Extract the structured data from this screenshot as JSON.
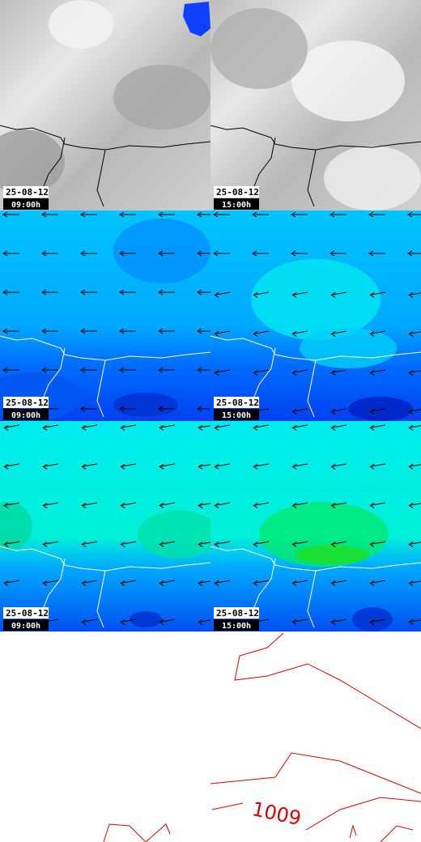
{
  "panels": [
    {
      "date": "25-08-12",
      "time": "09:00h"
    },
    {
      "date": "25-08-12",
      "time": "15:00h"
    },
    {
      "date": "25-08-12",
      "time": "09:00h"
    },
    {
      "date": "25-08-12",
      "time": "15:00h"
    },
    {
      "date": "25-08-12",
      "time": "09:00h"
    },
    {
      "date": "25-08-12",
      "time": "15:00h"
    }
  ],
  "isobar_label": "1009"
}
